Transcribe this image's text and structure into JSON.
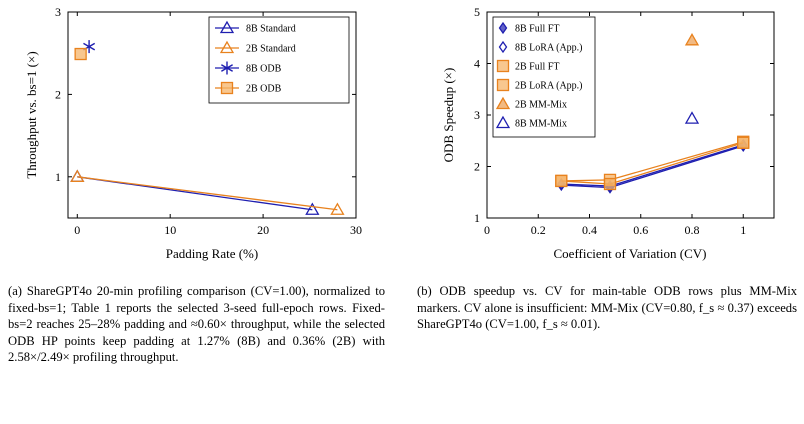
{
  "chart_data": [
    {
      "type": "line",
      "xlabel": "Padding Rate (%)",
      "ylabel": "Throughput vs. bs=1 (×)",
      "xlim": [
        -1,
        30
      ],
      "ylim": [
        0.5,
        3
      ],
      "xticks": [
        "0",
        "10",
        "20",
        "30"
      ],
      "yticks": [
        "1",
        "2",
        "3"
      ],
      "legend_position": "top-right",
      "series": [
        {
          "name": "8B Standard",
          "marker": "triangle",
          "color": "#1f1fb0",
          "points": [
            [
              0,
              1.0
            ],
            [
              25.3,
              0.6
            ]
          ]
        },
        {
          "name": "2B Standard",
          "marker": "triangle",
          "color": "#e8821e",
          "points": [
            [
              0,
              1.0
            ],
            [
              28.0,
              0.6
            ]
          ]
        },
        {
          "name": "8B ODB",
          "marker": "star",
          "color": "#1f1fb0",
          "points": [
            [
              1.27,
              2.58
            ]
          ]
        },
        {
          "name": "2B ODB",
          "marker": "square",
          "color": "#e8821e",
          "points": [
            [
              0.36,
              2.49
            ]
          ]
        }
      ]
    },
    {
      "type": "scatter",
      "xlabel": "Coefficient of Variation (CV)",
      "ylabel": "ODB Speedup (×)",
      "xlim": [
        0,
        1.12
      ],
      "ylim": [
        1,
        5
      ],
      "xticks": [
        "0",
        "0.2",
        "0.4",
        "0.6",
        "0.8",
        "1"
      ],
      "yticks": [
        "1",
        "2",
        "3",
        "4",
        "5"
      ],
      "legend_position": "top-left",
      "series": [
        {
          "name": "8B Full FT",
          "marker": "diamond-filled",
          "color": "#1f1fb0",
          "points": [
            [
              0.29,
              1.64
            ],
            [
              0.48,
              1.59
            ],
            [
              1.0,
              2.4
            ]
          ]
        },
        {
          "name": "8B LoRA (App.)",
          "marker": "diamond",
          "color": "#1f1fb0",
          "points": [
            [
              0.29,
              1.66
            ],
            [
              0.48,
              1.62
            ],
            [
              1.0,
              2.42
            ]
          ]
        },
        {
          "name": "2B Full FT",
          "marker": "square",
          "color": "#e8821e",
          "points": [
            [
              0.29,
              1.72
            ],
            [
              0.48,
              1.74
            ],
            [
              1.0,
              2.48
            ]
          ]
        },
        {
          "name": "2B LoRA (App.)",
          "marker": "square",
          "color": "#e8821e",
          "points": [
            [
              0.29,
              1.72
            ],
            [
              0.48,
              1.66
            ],
            [
              1.0,
              2.46
            ]
          ]
        },
        {
          "name": "2B MM-Mix",
          "marker": "triangle-filled",
          "color": "#e8821e",
          "points": [
            [
              0.8,
              4.45
            ]
          ]
        },
        {
          "name": "8B MM-Mix",
          "marker": "triangle",
          "color": "#1f1fb0",
          "points": [
            [
              0.8,
              2.93
            ]
          ]
        }
      ]
    }
  ],
  "captions": {
    "a": "(a) ShareGPT4o 20-min profiling comparison (CV=1.00), normalized to fixed-bs=1; Table 1 reports the selected 3-seed full-epoch rows. Fixed-bs=2 reaches 25–28% padding and ≈0.60× throughput, while the selected ODB HP points keep padding at 1.27% (8B) and 0.36% (2B) with 2.58×/2.49× profiling throughput.",
    "b": "(b) ODB speedup vs. CV for main-table ODB rows plus MM-Mix markers. CV alone is insufficient: MM-Mix (CV=0.80, f_s ≈ 0.37) exceeds ShareGPT4o (CV=1.00, f_s ≈ 0.01)."
  }
}
